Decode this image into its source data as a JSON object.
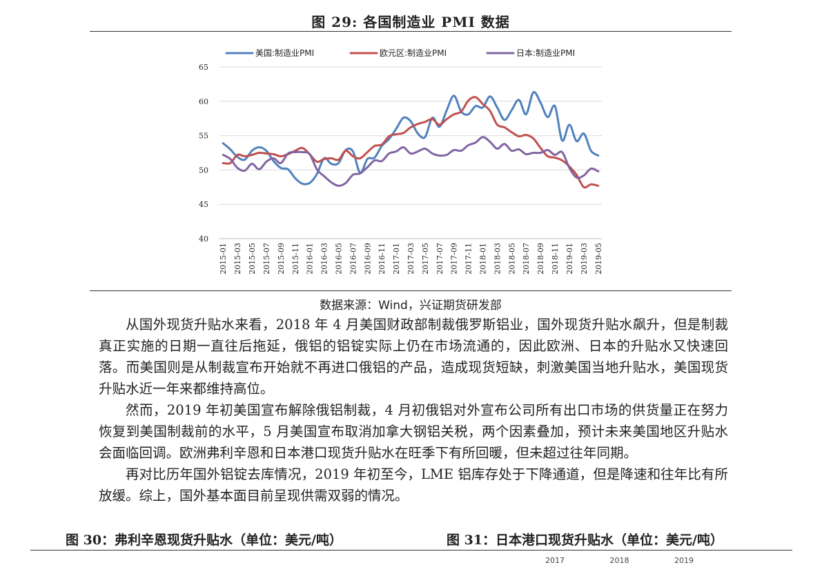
{
  "figure": {
    "title": "图 29:   各国制造业 PMI 数据",
    "source": "数据来源：Wind，兴证期货研发部"
  },
  "chart_data": {
    "type": "line",
    "title": "各国制造业 PMI 数据",
    "xlabel": "",
    "ylabel": "",
    "ylim": [
      40,
      65
    ],
    "yticks": [
      40,
      45,
      50,
      55,
      60,
      65
    ],
    "grid": true,
    "legend_position": "top",
    "x": [
      "2015-01",
      "2015-02",
      "2015-03",
      "2015-04",
      "2015-05",
      "2015-06",
      "2015-07",
      "2015-08",
      "2015-09",
      "2015-10",
      "2015-11",
      "2015-12",
      "2016-01",
      "2016-02",
      "2016-03",
      "2016-04",
      "2016-05",
      "2016-06",
      "2016-07",
      "2016-08",
      "2016-09",
      "2016-10",
      "2016-11",
      "2016-12",
      "2017-01",
      "2017-02",
      "2017-03",
      "2017-04",
      "2017-05",
      "2017-06",
      "2017-07",
      "2017-08",
      "2017-09",
      "2017-10",
      "2017-11",
      "2017-12",
      "2018-01",
      "2018-02",
      "2018-03",
      "2018-04",
      "2018-05",
      "2018-06",
      "2018-07",
      "2018-08",
      "2018-09",
      "2018-10",
      "2018-11",
      "2018-12",
      "2019-01",
      "2019-02",
      "2019-03",
      "2019-04",
      "2019-05"
    ],
    "xtick_labels": [
      "2015-01",
      "2015-03",
      "2015-05",
      "2015-07",
      "2015-09",
      "2015-11",
      "2016-01",
      "2016-03",
      "2016-05",
      "2016-07",
      "2016-09",
      "2016-11",
      "2017-01",
      "2017-03",
      "2017-05",
      "2017-07",
      "2017-09",
      "2017-11",
      "2018-01",
      "2018-03",
      "2018-05",
      "2018-07",
      "2018-09",
      "2018-11",
      "2019-01",
      "2019-03",
      "2019-05"
    ],
    "series": [
      {
        "name": "美国:制造业PMI",
        "color": "#4F81BD",
        "values": [
          53.9,
          53.0,
          51.9,
          51.5,
          52.8,
          53.3,
          52.8,
          51.3,
          50.3,
          50.1,
          48.8,
          48.0,
          48.1,
          49.4,
          51.7,
          50.9,
          51.0,
          52.9,
          52.7,
          49.6,
          51.6,
          51.8,
          53.5,
          54.5,
          56.0,
          57.6,
          57.1,
          55.3,
          54.8,
          57.6,
          56.3,
          58.7,
          60.8,
          58.5,
          58.1,
          59.3,
          59.1,
          60.7,
          59.1,
          57.3,
          58.7,
          60.2,
          58.1,
          61.3,
          59.8,
          57.7,
          59.3,
          54.3,
          56.6,
          54.2,
          55.3,
          52.8,
          52.1
        ]
      },
      {
        "name": "欧元区:制造业PMI",
        "color": "#C0504D",
        "values": [
          51.0,
          51.0,
          52.2,
          52.0,
          52.2,
          52.5,
          52.4,
          52.3,
          52.0,
          52.3,
          52.8,
          53.2,
          52.3,
          51.2,
          51.6,
          51.7,
          51.5,
          52.8,
          52.0,
          51.7,
          52.6,
          53.5,
          53.7,
          54.9,
          55.2,
          55.4,
          56.2,
          56.7,
          57.0,
          57.4,
          56.6,
          57.4,
          58.1,
          58.5,
          60.1,
          60.6,
          59.6,
          58.6,
          56.6,
          56.2,
          55.5,
          54.9,
          55.1,
          54.6,
          53.2,
          52.0,
          51.8,
          51.4,
          50.5,
          49.3,
          47.5,
          47.9,
          47.7
        ]
      },
      {
        "name": "日本:制造业PMI",
        "color": "#8064A2",
        "values": [
          52.2,
          51.6,
          50.3,
          49.9,
          50.9,
          50.1,
          51.2,
          51.7,
          51.0,
          52.4,
          52.6,
          52.6,
          52.3,
          50.1,
          49.1,
          48.2,
          47.7,
          48.1,
          49.3,
          49.5,
          50.4,
          51.4,
          51.3,
          52.4,
          52.7,
          53.3,
          52.4,
          52.7,
          53.1,
          52.4,
          52.1,
          52.2,
          52.9,
          52.8,
          53.6,
          54.0,
          54.8,
          54.1,
          53.1,
          53.8,
          52.8,
          53.0,
          52.3,
          52.5,
          52.5,
          52.9,
          52.2,
          52.6,
          50.3,
          48.9,
          49.2,
          50.2,
          49.8
        ]
      }
    ]
  },
  "paragraphs": [
    "从国外现货升贴水来看，2018 年 4 月美国财政部制裁俄罗斯铝业，国外现货升贴水飙升，但是制裁真正实施的日期一直往后拖延，俄铝的铝锭实际上仍在市场流通的，因此欧洲、日本的升贴水又快速回落。而美国则是从制裁宣布开始就不再进口俄铝的产品，造成现货短缺，刺激美国当地升贴水，美国现货升贴水近一年来都维持高位。",
    "然而，2019 年初美国宣布解除俄铝制裁，4 月初俄铝对外宣布公司所有出口市场的供货量正在努力恢复到美国制裁前的水平，5 月美国宣布取消加拿大钢铝关税，两个因素叠加，预计未来美国地区升贴水会面临回调。欧洲弗利辛恩和日本港口现货升贴水在旺季下有所回暖，但未超过往年同期。",
    "再对比历年国外铝锭去库情况，2019 年初至今，LME 铝库存处于下降通道，但是降速和往年比有所放缓。综上，国外基本面目前呈现供需双弱的情况。"
  ],
  "next_figures": {
    "left_title": "图 30：弗利辛恩现货升贴水（单位：美元/吨）",
    "right_title": "图 31：日本港口现货升贴水（单位：美元/吨）",
    "peek_labels": [
      "2017",
      "2018",
      "2019"
    ]
  }
}
